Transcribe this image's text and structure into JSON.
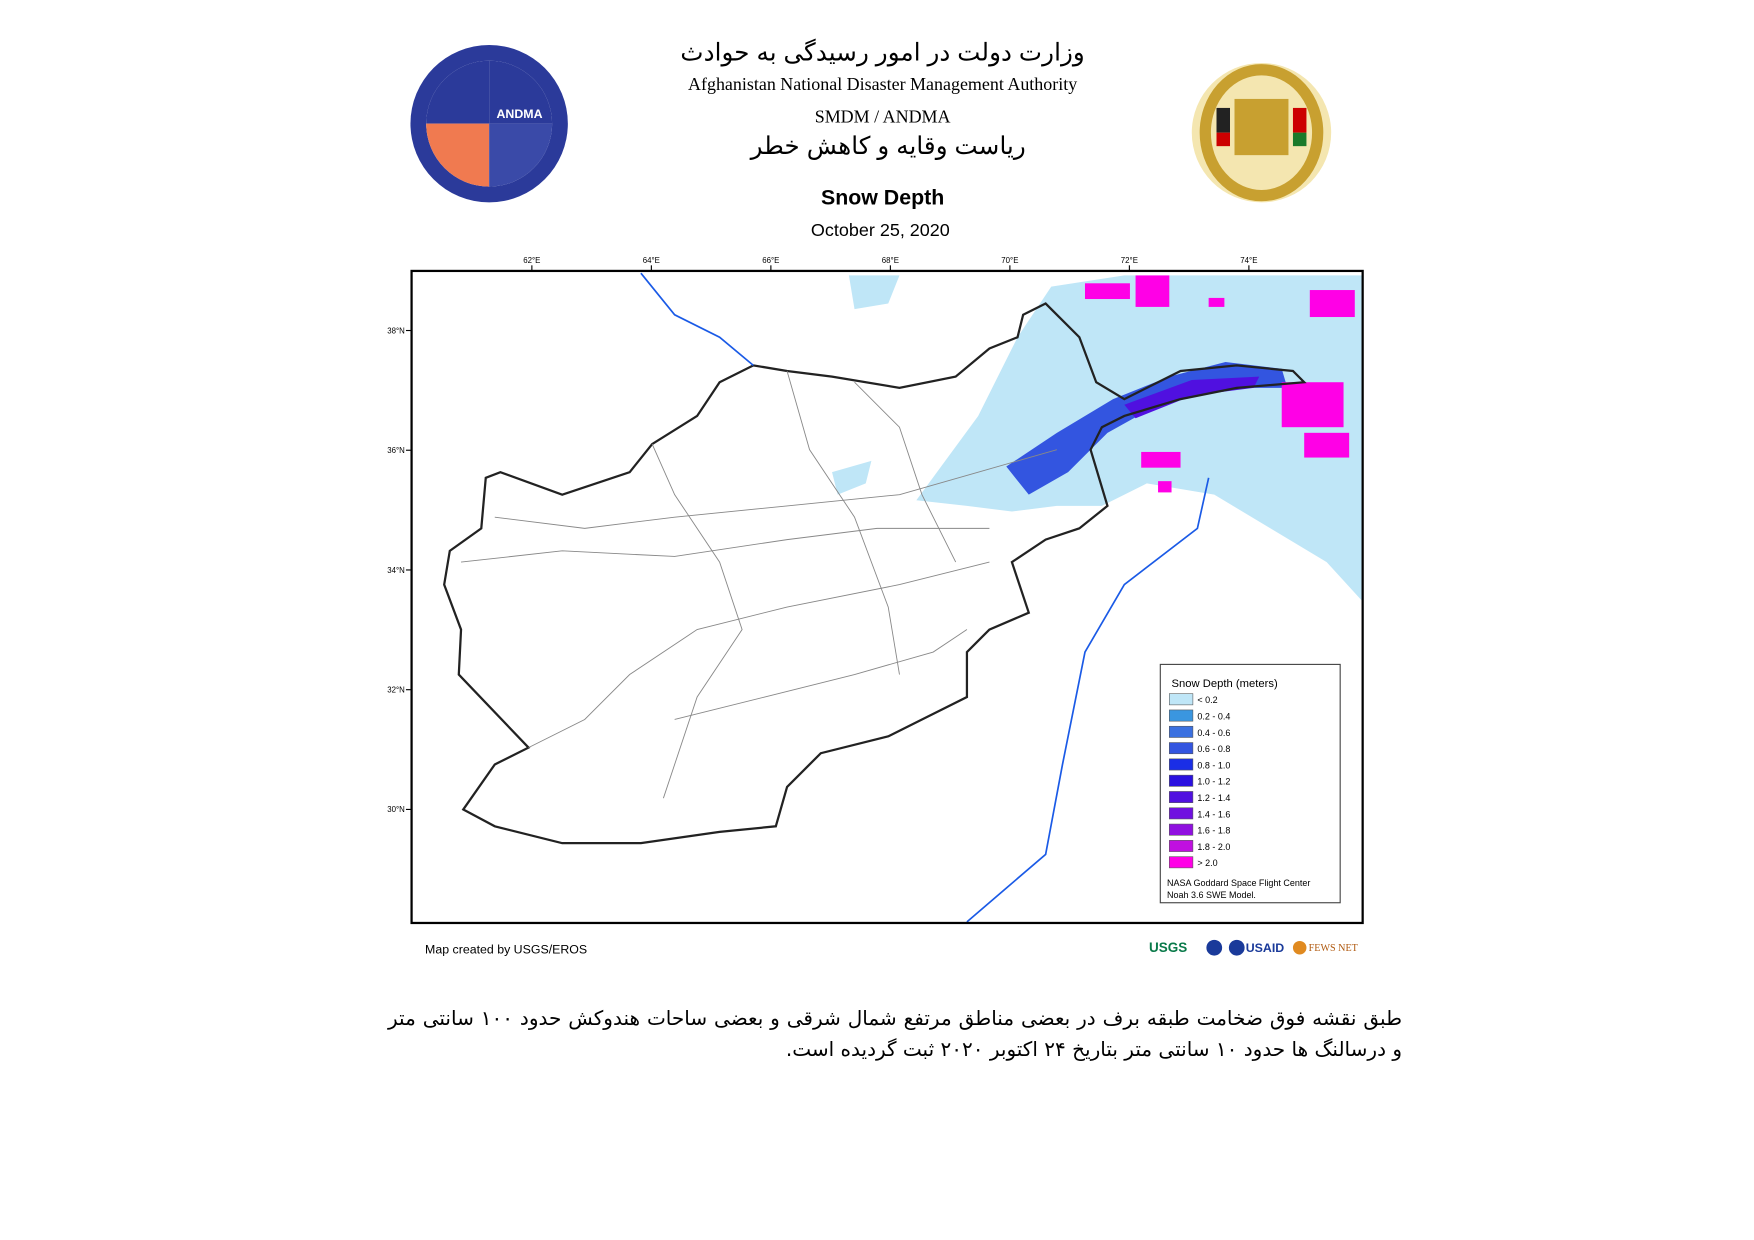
{
  "header": {
    "title_fa": "وزارت دولت در امور رسیدگی به حوادث",
    "title_en": "Afghanistan National Disaster Management Authority",
    "unit_en": "SMDM / ANDMA",
    "unit_fa": "ریاست وقایه و کاهش خطر",
    "logo_left": "ANDMA"
  },
  "map": {
    "title": "Snow Depth",
    "date": "October 25, 2020",
    "lon_labels": [
      "62°E",
      "64°E",
      "66°E",
      "68°E",
      "70°E",
      "72°E",
      "74°E"
    ],
    "lat_labels": [
      "38°N",
      "36°N",
      "34°N",
      "32°N",
      "30°N"
    ],
    "legend": {
      "title": "Snow Depth (meters)",
      "items": [
        {
          "label": "< 0.2",
          "color": "#bfe6f7"
        },
        {
          "label": "0.2 - 0.4",
          "color": "#3a96e0"
        },
        {
          "label": "0.4 - 0.6",
          "color": "#3a70e0"
        },
        {
          "label": "0.6 - 0.8",
          "color": "#3355e0"
        },
        {
          "label": "0.8 - 1.0",
          "color": "#1a2ee6"
        },
        {
          "label": "1.0 - 1.2",
          "color": "#2a10e0"
        },
        {
          "label": "1.2 - 1.4",
          "color": "#5010e0"
        },
        {
          "label": "1.4 - 1.6",
          "color": "#7010e0"
        },
        {
          "label": "1.6 - 1.8",
          "color": "#9010e0"
        },
        {
          "label": "1.8 - 2.0",
          "color": "#c010e0"
        },
        {
          "label": "> 2.0",
          "color": "#ff00e6"
        }
      ],
      "source": [
        "NASA Goddard Space Flight Center",
        "Noah 3.6 SWE Model."
      ]
    },
    "credit": "Map created by USGS/EROS",
    "logos": [
      "USGS",
      "USAID",
      "FEWS NET"
    ]
  },
  "footer": {
    "text": "طبق نقشه فوق ضخامت طبقه برف در بعضی مناطق مرتفع شمال شرقی و بعضی ساحات هندوکش حدود ۱۰۰ سانتی متر و درسالنگ ها حدود ۱۰ سانتی متر بتاریخ ۲۴ اکتوبر ۲۰۲۰ ثبت گردیده است."
  }
}
